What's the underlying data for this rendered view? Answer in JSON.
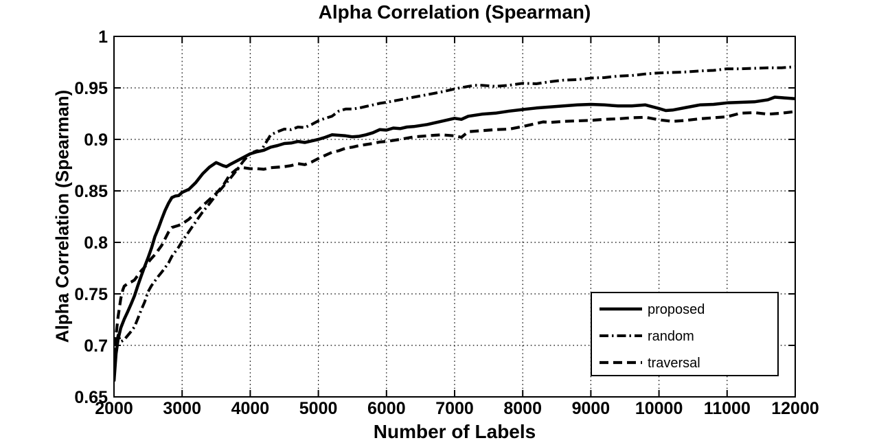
{
  "figure": {
    "title": "Alpha Correlation (Spearman)",
    "xlabel": "Number of Labels",
    "ylabel": "Alpha Correlation (Spearman)"
  },
  "colors": {
    "line": "#000000",
    "background": "#ffffff",
    "grid": "#000000",
    "axis": "#000000"
  },
  "legend": {
    "entries": [
      "proposed",
      "random",
      "traversal"
    ],
    "position": "inside-lower-right"
  },
  "chart_data": {
    "type": "line",
    "title": "Alpha Correlation (Spearman)",
    "xlabel": "Number of Labels",
    "ylabel": "Alpha Correlation (Spearman)",
    "xlim": [
      2000,
      12000
    ],
    "ylim": [
      0.65,
      1.0
    ],
    "grid": true,
    "legend_position": "lower right inside",
    "xticks": [
      2000,
      3000,
      4000,
      5000,
      6000,
      7000,
      8000,
      9000,
      10000,
      11000,
      12000
    ],
    "xtick_labels": [
      "2000",
      "3000",
      "4000",
      "5000",
      "6000",
      "7000",
      "8000",
      "9000",
      "10000",
      "11000",
      "12000"
    ],
    "yticks": [
      0.65,
      0.7,
      0.75,
      0.8,
      0.85,
      0.9,
      0.95,
      1.0
    ],
    "ytick_labels": [
      "0.65",
      "0.7",
      "0.75",
      "0.8",
      "0.85",
      "0.9",
      "0.95",
      "1"
    ],
    "series": [
      {
        "name": "proposed",
        "line_style": "solid",
        "color": "#000000",
        "points": [
          [
            2000,
            0.665
          ],
          [
            2030,
            0.692
          ],
          [
            2060,
            0.706
          ],
          [
            2100,
            0.717
          ],
          [
            2150,
            0.7255
          ],
          [
            2200,
            0.7325
          ],
          [
            2250,
            0.74
          ],
          [
            2300,
            0.748
          ],
          [
            2350,
            0.758
          ],
          [
            2400,
            0.7675
          ],
          [
            2450,
            0.7765
          ],
          [
            2500,
            0.785
          ],
          [
            2550,
            0.7945
          ],
          [
            2600,
            0.8055
          ],
          [
            2650,
            0.8135
          ],
          [
            2700,
            0.8225
          ],
          [
            2750,
            0.831
          ],
          [
            2800,
            0.838
          ],
          [
            2850,
            0.8435
          ],
          [
            2900,
            0.845
          ],
          [
            2950,
            0.8455
          ],
          [
            3000,
            0.8485
          ],
          [
            3100,
            0.8515
          ],
          [
            3200,
            0.858
          ],
          [
            3300,
            0.8665
          ],
          [
            3400,
            0.873
          ],
          [
            3500,
            0.8775
          ],
          [
            3550,
            0.876
          ],
          [
            3600,
            0.8745
          ],
          [
            3650,
            0.8735
          ],
          [
            3700,
            0.8755
          ],
          [
            3800,
            0.879
          ],
          [
            3900,
            0.8825
          ],
          [
            4000,
            0.886
          ],
          [
            4100,
            0.888
          ],
          [
            4200,
            0.8895
          ],
          [
            4300,
            0.8925
          ],
          [
            4400,
            0.894
          ],
          [
            4500,
            0.896
          ],
          [
            4600,
            0.8965
          ],
          [
            4700,
            0.898
          ],
          [
            4800,
            0.897
          ],
          [
            4900,
            0.8985
          ],
          [
            5000,
            0.9
          ],
          [
            5100,
            0.902
          ],
          [
            5200,
            0.9045
          ],
          [
            5300,
            0.904
          ],
          [
            5400,
            0.9035
          ],
          [
            5500,
            0.9025
          ],
          [
            5600,
            0.903
          ],
          [
            5700,
            0.9045
          ],
          [
            5800,
            0.9065
          ],
          [
            5900,
            0.9095
          ],
          [
            6000,
            0.909
          ],
          [
            6100,
            0.911
          ],
          [
            6200,
            0.9105
          ],
          [
            6300,
            0.912
          ],
          [
            6400,
            0.9125
          ],
          [
            6600,
            0.9145
          ],
          [
            6800,
            0.9175
          ],
          [
            7000,
            0.9205
          ],
          [
            7100,
            0.9195
          ],
          [
            7200,
            0.9225
          ],
          [
            7400,
            0.9245
          ],
          [
            7600,
            0.9255
          ],
          [
            7800,
            0.9275
          ],
          [
            8000,
            0.929
          ],
          [
            8200,
            0.9305
          ],
          [
            8400,
            0.9315
          ],
          [
            8600,
            0.9325
          ],
          [
            8800,
            0.9335
          ],
          [
            9000,
            0.934
          ],
          [
            9200,
            0.9335
          ],
          [
            9400,
            0.9325
          ],
          [
            9600,
            0.9325
          ],
          [
            9800,
            0.9335
          ],
          [
            10000,
            0.93
          ],
          [
            10100,
            0.928
          ],
          [
            10200,
            0.9285
          ],
          [
            10400,
            0.931
          ],
          [
            10600,
            0.9335
          ],
          [
            10800,
            0.934
          ],
          [
            11000,
            0.9355
          ],
          [
            11200,
            0.936
          ],
          [
            11400,
            0.9365
          ],
          [
            11600,
            0.9385
          ],
          [
            11700,
            0.941
          ],
          [
            11800,
            0.9405
          ],
          [
            12000,
            0.9395
          ]
        ]
      },
      {
        "name": "random",
        "line_style": "dash-dot",
        "color": "#000000",
        "points": [
          [
            2000,
            0.672
          ],
          [
            2030,
            0.7
          ],
          [
            2060,
            0.71
          ],
          [
            2100,
            0.7035
          ],
          [
            2150,
            0.7055
          ],
          [
            2200,
            0.7095
          ],
          [
            2250,
            0.7135
          ],
          [
            2300,
            0.718
          ],
          [
            2350,
            0.726
          ],
          [
            2400,
            0.7345
          ],
          [
            2450,
            0.742
          ],
          [
            2500,
            0.752
          ],
          [
            2550,
            0.758
          ],
          [
            2600,
            0.7625
          ],
          [
            2650,
            0.767
          ],
          [
            2700,
            0.771
          ],
          [
            2750,
            0.7755
          ],
          [
            2800,
            0.78
          ],
          [
            2850,
            0.7865
          ],
          [
            2900,
            0.791
          ],
          [
            2950,
            0.7955
          ],
          [
            3000,
            0.801
          ],
          [
            3100,
            0.8105
          ],
          [
            3200,
            0.82
          ],
          [
            3300,
            0.8295
          ],
          [
            3400,
            0.8375
          ],
          [
            3500,
            0.846
          ],
          [
            3600,
            0.854
          ],
          [
            3700,
            0.8615
          ],
          [
            3800,
            0.87
          ],
          [
            3900,
            0.879
          ],
          [
            4000,
            0.8865
          ],
          [
            4100,
            0.889
          ],
          [
            4150,
            0.8885
          ],
          [
            4200,
            0.8935
          ],
          [
            4300,
            0.9045
          ],
          [
            4400,
            0.9075
          ],
          [
            4500,
            0.91
          ],
          [
            4600,
            0.9095
          ],
          [
            4700,
            0.912
          ],
          [
            4800,
            0.9115
          ],
          [
            4900,
            0.9145
          ],
          [
            5000,
            0.918
          ],
          [
            5100,
            0.9205
          ],
          [
            5200,
            0.9225
          ],
          [
            5300,
            0.9275
          ],
          [
            5400,
            0.9295
          ],
          [
            5500,
            0.9295
          ],
          [
            5600,
            0.9305
          ],
          [
            5700,
            0.932
          ],
          [
            5800,
            0.9335
          ],
          [
            5900,
            0.935
          ],
          [
            6000,
            0.936
          ],
          [
            6200,
            0.9385
          ],
          [
            6400,
            0.941
          ],
          [
            6600,
            0.9435
          ],
          [
            6800,
            0.946
          ],
          [
            7000,
            0.949
          ],
          [
            7200,
            0.9515
          ],
          [
            7300,
            0.9525
          ],
          [
            7400,
            0.9525
          ],
          [
            7600,
            0.9515
          ],
          [
            7800,
            0.9525
          ],
          [
            8000,
            0.9545
          ],
          [
            8200,
            0.954
          ],
          [
            8400,
            0.956
          ],
          [
            8600,
            0.9575
          ],
          [
            8800,
            0.958
          ],
          [
            9000,
            0.9595
          ],
          [
            9200,
            0.96
          ],
          [
            9400,
            0.9615
          ],
          [
            9600,
            0.962
          ],
          [
            9800,
            0.9635
          ],
          [
            10000,
            0.9645
          ],
          [
            10200,
            0.965
          ],
          [
            10400,
            0.9655
          ],
          [
            10600,
            0.9665
          ],
          [
            10800,
            0.967
          ],
          [
            11000,
            0.9685
          ],
          [
            11200,
            0.9685
          ],
          [
            11400,
            0.969
          ],
          [
            11600,
            0.9695
          ],
          [
            11800,
            0.9695
          ],
          [
            12000,
            0.9705
          ]
        ]
      },
      {
        "name": "traversal",
        "line_style": "dashed",
        "color": "#000000",
        "points": [
          [
            2000,
            0.686
          ],
          [
            2030,
            0.71
          ],
          [
            2060,
            0.728
          ],
          [
            2100,
            0.7455
          ],
          [
            2130,
            0.754
          ],
          [
            2150,
            0.7575
          ],
          [
            2200,
            0.76
          ],
          [
            2250,
            0.7615
          ],
          [
            2300,
            0.7635
          ],
          [
            2350,
            0.768
          ],
          [
            2400,
            0.7725
          ],
          [
            2450,
            0.776
          ],
          [
            2500,
            0.7805
          ],
          [
            2550,
            0.7845
          ],
          [
            2600,
            0.788
          ],
          [
            2650,
            0.7925
          ],
          [
            2700,
            0.797
          ],
          [
            2750,
            0.8035
          ],
          [
            2800,
            0.81
          ],
          [
            2850,
            0.8145
          ],
          [
            2900,
            0.8155
          ],
          [
            2950,
            0.8165
          ],
          [
            3000,
            0.818
          ],
          [
            3100,
            0.8225
          ],
          [
            3200,
            0.829
          ],
          [
            3300,
            0.8355
          ],
          [
            3400,
            0.8415
          ],
          [
            3500,
            0.8475
          ],
          [
            3600,
            0.855
          ],
          [
            3700,
            0.8655
          ],
          [
            3800,
            0.871
          ],
          [
            3900,
            0.8725
          ],
          [
            4000,
            0.8715
          ],
          [
            4100,
            0.8715
          ],
          [
            4200,
            0.871
          ],
          [
            4300,
            0.8725
          ],
          [
            4400,
            0.873
          ],
          [
            4500,
            0.8735
          ],
          [
            4600,
            0.8745
          ],
          [
            4700,
            0.8765
          ],
          [
            4800,
            0.8755
          ],
          [
            4900,
            0.878
          ],
          [
            5000,
            0.8815
          ],
          [
            5100,
            0.8845
          ],
          [
            5200,
            0.8875
          ],
          [
            5300,
            0.889
          ],
          [
            5400,
            0.8915
          ],
          [
            5500,
            0.8925
          ],
          [
            5600,
            0.894
          ],
          [
            5700,
            0.895
          ],
          [
            5800,
            0.896
          ],
          [
            5900,
            0.8975
          ],
          [
            6000,
            0.898
          ],
          [
            6200,
            0.9
          ],
          [
            6400,
            0.9025
          ],
          [
            6600,
            0.9035
          ],
          [
            6800,
            0.9045
          ],
          [
            7000,
            0.9035
          ],
          [
            7100,
            0.902
          ],
          [
            7200,
            0.9075
          ],
          [
            7400,
            0.9085
          ],
          [
            7600,
            0.9095
          ],
          [
            7800,
            0.91
          ],
          [
            8000,
            0.9125
          ],
          [
            8200,
            0.9155
          ],
          [
            8300,
            0.917
          ],
          [
            8400,
            0.9165
          ],
          [
            8600,
            0.9175
          ],
          [
            8800,
            0.918
          ],
          [
            9000,
            0.9185
          ],
          [
            9200,
            0.9195
          ],
          [
            9400,
            0.92
          ],
          [
            9600,
            0.921
          ],
          [
            9800,
            0.9215
          ],
          [
            10000,
            0.919
          ],
          [
            10200,
            0.9175
          ],
          [
            10400,
            0.9185
          ],
          [
            10600,
            0.92
          ],
          [
            10800,
            0.921
          ],
          [
            11000,
            0.922
          ],
          [
            11200,
            0.9255
          ],
          [
            11400,
            0.926
          ],
          [
            11600,
            0.9245
          ],
          [
            11800,
            0.9255
          ],
          [
            12000,
            0.927
          ]
        ]
      }
    ]
  }
}
